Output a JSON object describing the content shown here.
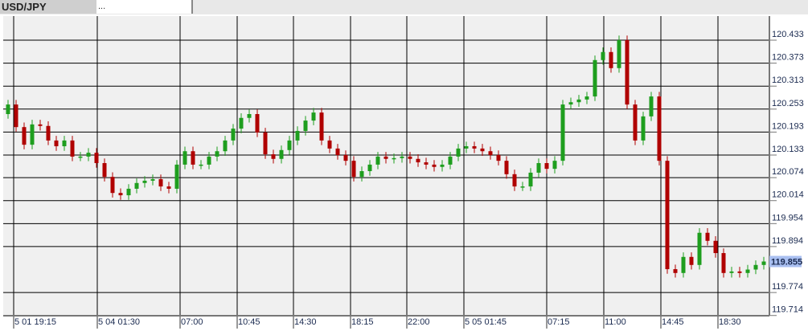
{
  "tabs": [
    {
      "label": "USD/JPY",
      "active": true
    },
    {
      "label": "..."
    }
  ],
  "chart_data": {
    "type": "candlestick",
    "symbol": "USD/JPY",
    "y_ticks": [
      "120.433",
      "120.373",
      "120.313",
      "120.253",
      "120.193",
      "120.133",
      "120.074",
      "120.014",
      "119.954",
      "119.894",
      "119.774",
      "119.714"
    ],
    "ylim": [
      119.702,
      120.462
    ],
    "x_ticks": [
      "5 01 19:15",
      "5 04 01:30",
      "07:00",
      "10:45",
      "14:30",
      "18:15",
      "22:00",
      "5 05 01:45",
      "07:15",
      "11:00",
      "14:45",
      "18:30"
    ],
    "current_price": "119.855",
    "colors": {
      "up": "#1e9e1e",
      "down": "#b00000",
      "current_label": "#a9bff0",
      "grid": "#000000",
      "plot_bg": "#f0f0f0"
    },
    "grid": true,
    "close": [
      120.265,
      120.206,
      120.16,
      120.213,
      120.209,
      120.171,
      120.156,
      120.171,
      120.129,
      120.129,
      120.139,
      120.112,
      120.076,
      120.034,
      120.028,
      120.045,
      120.06,
      120.066,
      120.07,
      120.051,
      120.045,
      120.108,
      120.143,
      120.108,
      120.108,
      120.129,
      120.143,
      120.171,
      120.202,
      120.23,
      120.24,
      120.192,
      120.135,
      120.123,
      120.146,
      120.171,
      120.196,
      120.223,
      120.244,
      120.171,
      120.15,
      120.133,
      120.118,
      120.076,
      120.091,
      120.108,
      120.129,
      120.123,
      120.125,
      120.129,
      120.123,
      120.114,
      120.108,
      120.102,
      120.108,
      120.129,
      120.15,
      120.156,
      120.15,
      120.143,
      120.133,
      120.118,
      120.083,
      120.051,
      120.051,
      120.087,
      120.112,
      120.097,
      120.118,
      120.265,
      120.271,
      120.278,
      120.286,
      120.381,
      120.402,
      120.36,
      120.433,
      120.265,
      120.171,
      120.234,
      120.286,
      120.118,
      119.835,
      119.825,
      119.867,
      119.846,
      119.93,
      119.909,
      119.877,
      119.825,
      119.829,
      119.825,
      119.834,
      119.846,
      119.855
    ]
  }
}
